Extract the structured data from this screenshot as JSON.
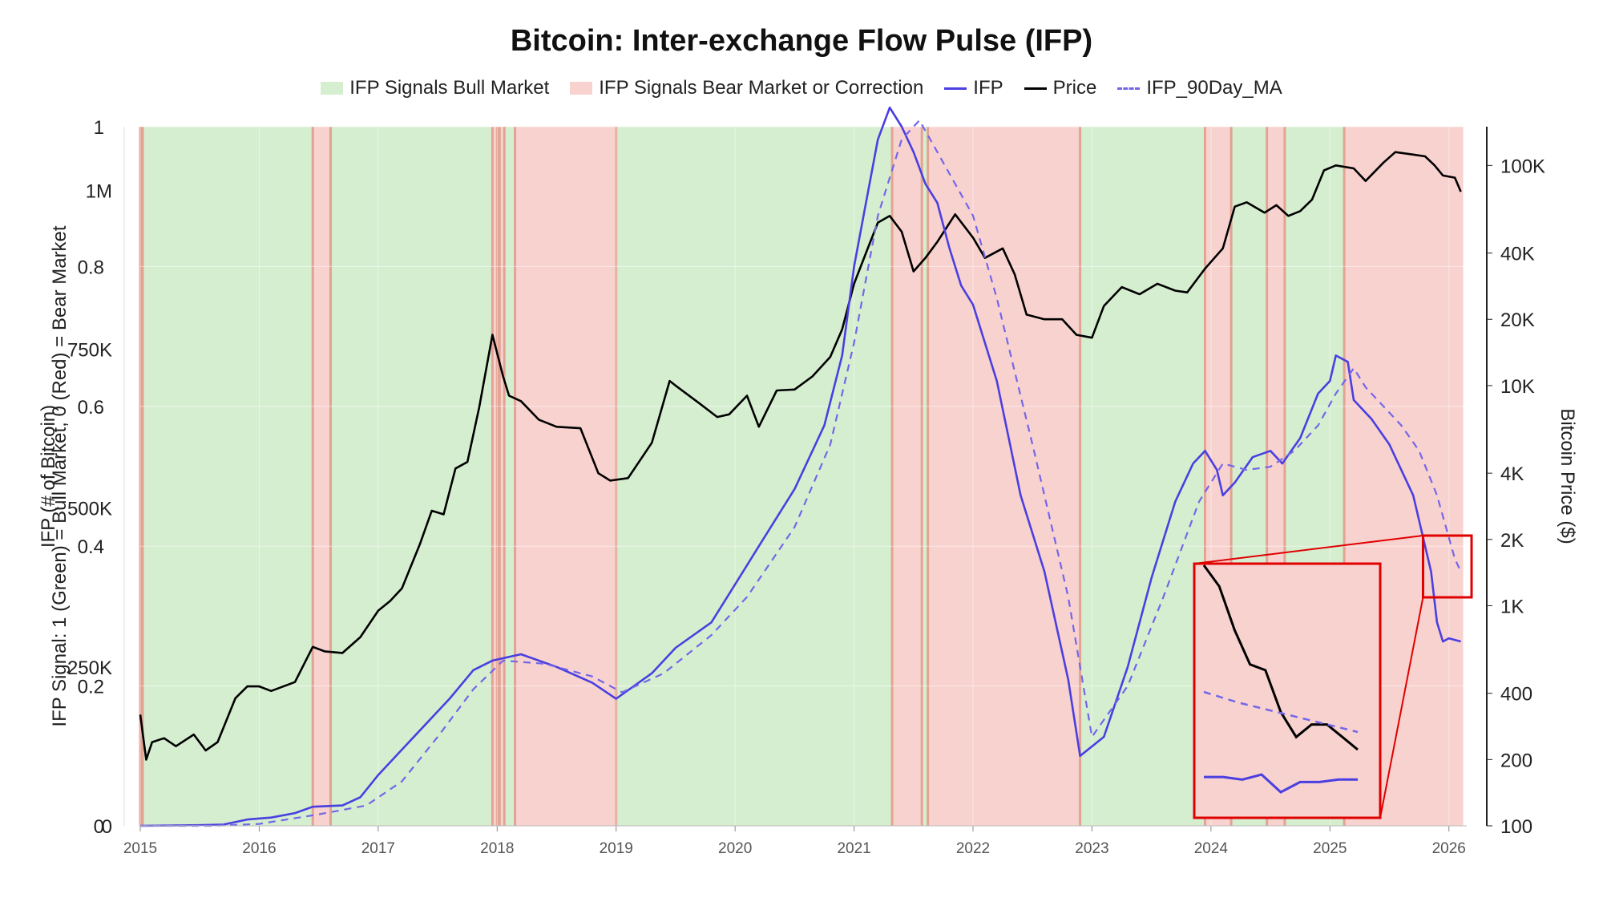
{
  "chart_data": {
    "type": "line",
    "title": "Bitcoin: Inter-exchange Flow Pulse (IFP)",
    "legend": [
      {
        "label": "IFP Signals Bull Market",
        "kind": "box",
        "color": "#d6eed0"
      },
      {
        "label": "IFP Signals Bear Market or Correction",
        "kind": "box",
        "color": "#f8d2cf"
      },
      {
        "label": "IFP",
        "kind": "line",
        "color": "#4a3fe0"
      },
      {
        "label": "Price",
        "kind": "line",
        "color": "#000000"
      },
      {
        "label": "IFP_90Day_MA",
        "kind": "dash",
        "color": "#7466e8"
      }
    ],
    "legend_position": "top-center",
    "x_axis": {
      "type": "year",
      "range": [
        2015.0,
        2026.15
      ],
      "ticks": [
        "2015",
        "2016",
        "2017",
        "2018",
        "2019",
        "2020",
        "2021",
        "2022",
        "2023",
        "2024",
        "2025",
        "2026"
      ]
    },
    "y_left_signal": {
      "label": "IFP Signal: 1 (Green) = Bull Market, 0 (Red) = Bear Market",
      "range": [
        0,
        1
      ],
      "ticks": [
        "0",
        "0.2",
        "0.4",
        "0.6",
        "0.8",
        "1"
      ]
    },
    "y_left_ifp": {
      "label": "IFP (# of Bitcoin)",
      "range": [
        0,
        1100000
      ],
      "ticks": [
        "0",
        "250K",
        "500K",
        "750K",
        "1M"
      ]
    },
    "y_right_price": {
      "label": "Bitcoin Price ($)",
      "scale": "log",
      "range": [
        100,
        150000
      ],
      "ticks": [
        "100",
        "200",
        "400",
        "1K",
        "2K",
        "4K",
        "10K",
        "20K",
        "40K",
        "100K"
      ]
    },
    "grid": true,
    "colors": {
      "bull": "#d6eed0",
      "bear": "#f8d2cf",
      "regime_edge": "#e3a393",
      "ifp": "#4a3fe0",
      "price": "#000000",
      "ma": "#7466e8",
      "inset_frame": "#e00000"
    },
    "regime_bands": [
      {
        "signal": "bear",
        "start": 2015.0,
        "end": 2015.02
      },
      {
        "signal": "bull",
        "start": 2015.02,
        "end": 2016.45
      },
      {
        "signal": "bear",
        "start": 2016.45,
        "end": 2016.6
      },
      {
        "signal": "bull",
        "start": 2016.6,
        "end": 2017.96
      },
      {
        "signal": "bear",
        "start": 2017.96,
        "end": 2018.0
      },
      {
        "signal": "bull",
        "start": 2018.0,
        "end": 2018.02
      },
      {
        "signal": "bear",
        "start": 2018.02,
        "end": 2018.06
      },
      {
        "signal": "bull",
        "start": 2018.06,
        "end": 2018.15
      },
      {
        "signal": "bear",
        "start": 2018.15,
        "end": 2019.0
      },
      {
        "signal": "bull",
        "start": 2019.0,
        "end": 2021.32
      },
      {
        "signal": "bear",
        "start": 2021.32,
        "end": 2021.57
      },
      {
        "signal": "bull",
        "start": 2021.57,
        "end": 2021.62
      },
      {
        "signal": "bear",
        "start": 2021.62,
        "end": 2022.9
      },
      {
        "signal": "bull",
        "start": 2022.9,
        "end": 2023.95
      },
      {
        "signal": "bear",
        "start": 2023.95,
        "end": 2024.17
      },
      {
        "signal": "bull",
        "start": 2024.17,
        "end": 2024.47
      },
      {
        "signal": "bear",
        "start": 2024.47,
        "end": 2024.62
      },
      {
        "signal": "bull",
        "start": 2024.62,
        "end": 2025.12
      },
      {
        "signal": "bear",
        "start": 2025.12,
        "end": 2026.12
      }
    ],
    "series": [
      {
        "name": "Price",
        "axis": "price",
        "x": [
          2015.0,
          2015.05,
          2015.1,
          2015.2,
          2015.3,
          2015.45,
          2015.55,
          2015.65,
          2015.8,
          2015.9,
          2016.0,
          2016.1,
          2016.3,
          2016.45,
          2016.55,
          2016.7,
          2016.85,
          2017.0,
          2017.1,
          2017.2,
          2017.35,
          2017.45,
          2017.55,
          2017.65,
          2017.75,
          2017.85,
          2017.96,
          2018.05,
          2018.1,
          2018.2,
          2018.35,
          2018.5,
          2018.7,
          2018.85,
          2018.95,
          2019.1,
          2019.3,
          2019.45,
          2019.5,
          2019.7,
          2019.85,
          2019.95,
          2020.1,
          2020.2,
          2020.35,
          2020.5,
          2020.65,
          2020.8,
          2020.9,
          2021.0,
          2021.1,
          2021.2,
          2021.3,
          2021.4,
          2021.5,
          2021.6,
          2021.7,
          2021.85,
          2022.0,
          2022.1,
          2022.25,
          2022.35,
          2022.45,
          2022.6,
          2022.75,
          2022.87,
          2023.0,
          2023.1,
          2023.25,
          2023.4,
          2023.55,
          2023.7,
          2023.8,
          2023.95,
          2024.1,
          2024.2,
          2024.3,
          2024.45,
          2024.55,
          2024.65,
          2024.75,
          2024.85,
          2024.95,
          2025.05,
          2025.2,
          2025.3,
          2025.45,
          2025.55,
          2025.7,
          2025.8,
          2025.88,
          2025.95,
          2026.05,
          2026.1
        ],
        "y": [
          320,
          200,
          240,
          250,
          230,
          260,
          220,
          240,
          380,
          430,
          430,
          410,
          450,
          650,
          620,
          610,
          720,
          950,
          1050,
          1200,
          1900,
          2700,
          2600,
          4200,
          4500,
          8000,
          17000,
          11000,
          9000,
          8500,
          7000,
          6500,
          6400,
          4000,
          3700,
          3800,
          5500,
          10500,
          10000,
          8300,
          7200,
          7400,
          9000,
          6500,
          9500,
          9600,
          11000,
          13500,
          18000,
          29000,
          40000,
          55000,
          59000,
          50000,
          33000,
          38000,
          45000,
          60000,
          47000,
          38000,
          42000,
          32000,
          21000,
          20000,
          20000,
          17000,
          16500,
          23000,
          28000,
          26000,
          29000,
          27000,
          26500,
          34000,
          42000,
          65000,
          68000,
          61000,
          66000,
          59000,
          62000,
          70000,
          95000,
          100000,
          97000,
          85000,
          103000,
          115000,
          112000,
          110000,
          100000,
          90000,
          88000,
          76000
        ]
      },
      {
        "name": "IFP",
        "axis": "ifp",
        "x": [
          2015.0,
          2015.5,
          2015.7,
          2015.9,
          2016.1,
          2016.3,
          2016.45,
          2016.7,
          2016.85,
          2017.0,
          2017.2,
          2017.4,
          2017.6,
          2017.8,
          2017.96,
          2018.2,
          2018.5,
          2018.8,
          2019.0,
          2019.3,
          2019.5,
          2019.8,
          2020.0,
          2020.2,
          2020.5,
          2020.75,
          2020.9,
          2021.0,
          2021.1,
          2021.2,
          2021.3,
          2021.4,
          2021.5,
          2021.6,
          2021.7,
          2021.8,
          2021.9,
          2022.0,
          2022.2,
          2022.4,
          2022.6,
          2022.8,
          2022.9,
          2023.1,
          2023.3,
          2023.5,
          2023.7,
          2023.85,
          2023.95,
          2024.05,
          2024.1,
          2024.2,
          2024.35,
          2024.5,
          2024.6,
          2024.75,
          2024.9,
          2025.0,
          2025.05,
          2025.15,
          2025.2,
          2025.35,
          2025.5,
          2025.7,
          2025.85,
          2025.9,
          2025.95,
          2026.0,
          2026.1
        ],
        "y": [
          0,
          1000,
          2000,
          10000,
          13000,
          20000,
          30000,
          32000,
          45000,
          80000,
          120000,
          160000,
          200000,
          245000,
          260000,
          270000,
          250000,
          225000,
          200000,
          240000,
          280000,
          320000,
          380000,
          440000,
          530000,
          630000,
          740000,
          880000,
          980000,
          1080000,
          1130000,
          1100000,
          1060000,
          1010000,
          980000,
          910000,
          850000,
          820000,
          700000,
          520000,
          400000,
          230000,
          110000,
          140000,
          250000,
          390000,
          510000,
          570000,
          590000,
          560000,
          520000,
          540000,
          580000,
          590000,
          570000,
          610000,
          680000,
          700000,
          740000,
          730000,
          670000,
          640000,
          600000,
          520000,
          400000,
          320000,
          290000,
          295000,
          290000
        ]
      },
      {
        "name": "IFP_90Day_MA",
        "axis": "ifp",
        "x": [
          2015.0,
          2015.6,
          2016.0,
          2016.5,
          2016.9,
          2017.2,
          2017.5,
          2017.8,
          2018.05,
          2018.4,
          2018.8,
          2019.05,
          2019.4,
          2019.8,
          2020.1,
          2020.5,
          2020.8,
          2021.0,
          2021.2,
          2021.4,
          2021.55,
          2021.7,
          2021.85,
          2022.0,
          2022.2,
          2022.5,
          2022.8,
          2023.0,
          2023.3,
          2023.6,
          2023.9,
          2024.1,
          2024.3,
          2024.5,
          2024.7,
          2024.9,
          2025.05,
          2025.2,
          2025.3,
          2025.45,
          2025.6,
          2025.75,
          2025.9,
          2026.05,
          2026.1
        ],
        "y": [
          0,
          0,
          3000,
          18000,
          32000,
          70000,
          140000,
          215000,
          260000,
          255000,
          235000,
          210000,
          240000,
          300000,
          360000,
          470000,
          600000,
          760000,
          960000,
          1080000,
          1110000,
          1060000,
          1010000,
          960000,
          830000,
          600000,
          360000,
          140000,
          220000,
          360000,
          510000,
          570000,
          560000,
          565000,
          590000,
          630000,
          680000,
          720000,
          690000,
          660000,
          630000,
          590000,
          520000,
          420000,
          400000
        ]
      }
    ],
    "inset": {
      "source_x_range": [
        2025.85,
        2026.15
      ],
      "series": [
        {
          "name": "Price",
          "y": [
            88000,
            86000,
            82000,
            79000,
            78500,
            75000,
            73000,
            74000,
            74000,
            73000,
            72000
          ]
        },
        {
          "name": "IFP_90Day_MA",
          "y": [
            450000,
            445000,
            440000,
            436000,
            432000,
            428000,
            424000,
            420000,
            416000,
            412000
          ]
        },
        {
          "name": "IFP",
          "y": [
            303000,
            303000,
            302000,
            304000,
            297000,
            301000,
            301000,
            302000,
            302000
          ]
        }
      ]
    }
  }
}
